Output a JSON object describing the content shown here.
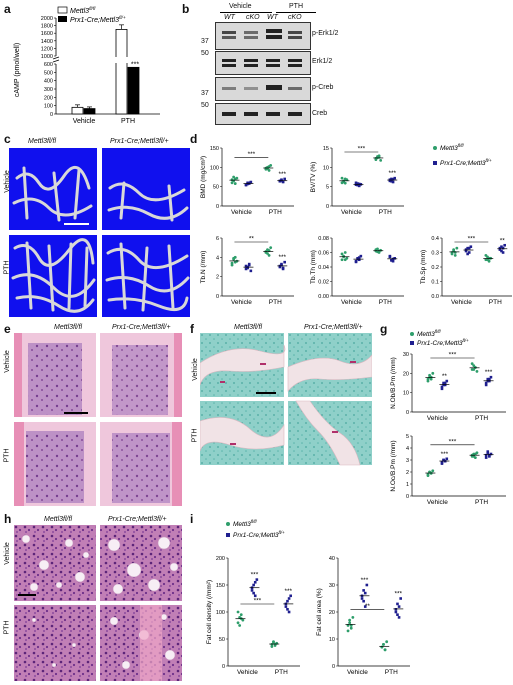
{
  "panels": {
    "a": {
      "letter": "a",
      "legend": [
        "Mettl3fl/fl",
        "Prx1-Cre;Mettl3fl/+"
      ],
      "ylabel": "cAMP (pmol/well)",
      "yticks": [
        "0",
        "100",
        "200",
        "300",
        "400",
        "500",
        "600",
        "1000",
        "1200",
        "1400",
        "1600",
        "1800",
        "2000"
      ],
      "categories": [
        "Vehicle",
        "PTH"
      ],
      "sig": "***"
    },
    "b": {
      "letter": "b",
      "groups": [
        "Vehicle",
        "PTH"
      ],
      "lanes": [
        "WT",
        "cKO",
        "WT",
        "cKO"
      ],
      "bands": [
        "p-Erk1/2",
        "Erk1/2",
        "p-Creb",
        "Creb"
      ],
      "markers": [
        "37",
        "50",
        "37",
        "50"
      ]
    },
    "c": {
      "letter": "c",
      "cols": [
        "Mettl3fl/fl",
        "Prx1-Cre;Mettl3fl/+"
      ],
      "rows": [
        "Vehicle",
        "PTH"
      ]
    },
    "d": {
      "letter": "d",
      "legend": [
        "Mettl3fl/fl",
        "Prx1-Cre;Mettl3fl/+"
      ],
      "xcats": [
        "Vehicle",
        "PTH"
      ]
    },
    "e": {
      "letter": "e",
      "cols": [
        "Mettl3fl/fl",
        "Prx1-Cre;Mettl3fl/+"
      ],
      "rows": [
        "Vehicle",
        "PTH"
      ]
    },
    "f": {
      "letter": "f",
      "cols": [
        "Mettl3fl/fl",
        "Prx1-Cre;Mettl3fl/+"
      ],
      "rows": [
        "Vehicle",
        "PTH"
      ]
    },
    "g": {
      "letter": "g",
      "legend": [
        "Mettl3fl/fl",
        "Prx1-Cre;Mettl3fl/+"
      ]
    },
    "h": {
      "letter": "h",
      "cols": [
        "Mettl3fl/fl",
        "Prx1-Cre;Mettl3fl/+"
      ],
      "rows": [
        "Vehicle",
        "PTH"
      ]
    },
    "i": {
      "letter": "i",
      "legend": [
        "Mettl3fl/fl",
        "Prx1-Cre;Mettl3fl/+"
      ]
    }
  },
  "colors": {
    "wt": "#2e9e6b",
    "ko": "#1f1f8f",
    "ct_bg": "#1010ee",
    "he_pink": "#e9a9c6",
    "he_purple": "#8a4a9a",
    "trap_bg": "#7fc8c2"
  },
  "chart_data": [
    {
      "panel": "a",
      "type": "bar",
      "categories": [
        "Vehicle",
        "PTH"
      ],
      "series": [
        {
          "name": "Mettl3fl/fl",
          "values": [
            80,
            1700
          ],
          "errors": [
            30,
            120
          ]
        },
        {
          "name": "Prx1-Cre;Mettl3fl/+",
          "values": [
            65,
            560
          ],
          "errors": [
            20,
            70
          ]
        }
      ],
      "ylabel": "cAMP (pmol/well)",
      "ylim": [
        0,
        2000
      ],
      "axis_break": [
        600,
        1000
      ]
    },
    {
      "panel": "d",
      "type": "scatter",
      "ylabel": "BMD (mg/cm³)",
      "ylim": [
        0,
        150
      ],
      "yticks": [
        "0",
        "50",
        "100",
        "150"
      ],
      "groups": {
        "wt_vehicle": [
          60,
          65,
          70,
          72,
          68,
          75,
          58
        ],
        "ko_vehicle": [
          55,
          60,
          58,
          62,
          54,
          57,
          60
        ],
        "wt_pth": [
          95,
          100,
          92,
          105,
          98,
          96,
          102
        ],
        "ko_pth": [
          65,
          68,
          62,
          70,
          64,
          66,
          63
        ]
      },
      "sig": {
        "bracket": "***",
        "ko_pth": "***"
      }
    },
    {
      "panel": "d",
      "type": "scatter",
      "ylabel": "BV/TV (%)",
      "ylim": [
        0,
        15
      ],
      "yticks": [
        "0",
        "5",
        "10",
        "15"
      ],
      "groups": {
        "wt_vehicle": [
          6,
          6.5,
          7,
          6.8,
          7.2,
          6.2,
          5.9
        ],
        "ko_vehicle": [
          5.5,
          5.8,
          5.2,
          5.6,
          6.0,
          5.4,
          5.7
        ],
        "wt_pth": [
          12,
          12.5,
          13,
          11.8,
          12.3,
          12.8,
          12.6
        ],
        "ko_pth": [
          6.5,
          7,
          6.2,
          7.2,
          6.8,
          6.4,
          6.9
        ]
      },
      "sig": {
        "bracket": "***",
        "ko_pth": "***"
      }
    },
    {
      "panel": "d",
      "type": "scatter",
      "ylabel": "Tb.N (/mm)",
      "ylim": [
        0,
        6
      ],
      "yticks": [
        "0",
        "2",
        "4",
        "6"
      ],
      "groups": {
        "wt_vehicle": [
          3.4,
          3.8,
          4.0,
          3.6,
          3.2,
          3.9,
          3.5
        ],
        "ko_vehicle": [
          2.8,
          3.0,
          3.2,
          2.6,
          3.1,
          2.9,
          3.3
        ],
        "wt_pth": [
          4.5,
          4.8,
          4.2,
          5.0,
          4.6,
          4.4,
          4.7
        ],
        "ko_pth": [
          3.0,
          3.3,
          2.8,
          3.5,
          3.1,
          3.2,
          2.9
        ]
      },
      "sig": {
        "bracket": "**",
        "ko_pth": "***"
      }
    },
    {
      "panel": "d",
      "type": "scatter",
      "ylabel": "Tb.Th (mm)",
      "ylim": [
        0,
        0.08
      ],
      "yticks": [
        "0.00",
        "0.02",
        "0.04",
        "0.06",
        "0.08"
      ],
      "groups": {
        "wt_vehicle": [
          0.05,
          0.055,
          0.06,
          0.052,
          0.058,
          0.054,
          0.05
        ],
        "ko_vehicle": [
          0.048,
          0.052,
          0.05,
          0.055,
          0.047,
          0.051,
          0.053
        ],
        "wt_pth": [
          0.062,
          0.065,
          0.06,
          0.063,
          0.064,
          0.061,
          0.062
        ],
        "ko_pth": [
          0.055,
          0.05,
          0.048,
          0.052,
          0.054,
          0.049,
          0.051
        ]
      }
    },
    {
      "panel": "d",
      "type": "scatter",
      "ylabel": "Tb.Sp (mm)",
      "ylim": [
        0,
        0.4
      ],
      "yticks": [
        "0.0",
        "0.1",
        "0.2",
        "0.3",
        "0.4"
      ],
      "groups": {
        "wt_vehicle": [
          0.3,
          0.32,
          0.28,
          0.33,
          0.29,
          0.31,
          0.3
        ],
        "ko_vehicle": [
          0.31,
          0.33,
          0.3,
          0.34,
          0.32,
          0.29,
          0.33
        ],
        "wt_pth": [
          0.25,
          0.27,
          0.24,
          0.26,
          0.28,
          0.25,
          0.26
        ],
        "ko_pth": [
          0.32,
          0.34,
          0.3,
          0.35,
          0.33,
          0.31,
          0.33
        ]
      },
      "sig": {
        "bracket": "***",
        "ko_pth": "**"
      }
    },
    {
      "panel": "g",
      "type": "scatter",
      "ylabel": "N.Ob/B.Pm (/mm)",
      "ylim": [
        0,
        30
      ],
      "yticks": [
        "0",
        "10",
        "20",
        "30"
      ],
      "groups": {
        "wt_vehicle": [
          17,
          19,
          18,
          20,
          16,
          18,
          17
        ],
        "ko_vehicle": [
          13,
          15,
          14,
          16,
          12,
          14,
          15
        ],
        "wt_pth": [
          22,
          24,
          23,
          21,
          25,
          22,
          23
        ],
        "ko_pth": [
          15,
          17,
          16,
          18,
          14,
          16,
          17
        ]
      },
      "sig": {
        "bracket": "***",
        "ko_vehicle": "**",
        "ko_pth": "***"
      }
    },
    {
      "panel": "g",
      "type": "scatter",
      "ylabel": "N.Oc/B.Pm (/mm)",
      "ylim": [
        0,
        5
      ],
      "yticks": [
        "0",
        "1",
        "2",
        "3",
        "4",
        "5"
      ],
      "groups": {
        "wt_vehicle": [
          1.8,
          2.0,
          1.9,
          2.1,
          1.7,
          2.0,
          1.9
        ],
        "ko_vehicle": [
          2.8,
          3.0,
          2.9,
          3.1,
          2.7,
          3.0,
          2.9
        ],
        "wt_pth": [
          3.3,
          3.5,
          3.2,
          3.6,
          3.4,
          3.3,
          3.5
        ],
        "ko_pth": [
          3.4,
          3.6,
          3.3,
          3.5,
          3.2,
          3.7,
          3.4
        ]
      },
      "sig": {
        "bracket": "***",
        "ko_vehicle": "***"
      }
    },
    {
      "panel": "i",
      "type": "scatter",
      "ylabel": "Fat cell density (/mm²)",
      "ylim": [
        0,
        200
      ],
      "yticks": [
        "0",
        "50",
        "100",
        "150",
        "200"
      ],
      "groups": {
        "wt_vehicle": [
          80,
          90,
          95,
          85,
          100,
          75,
          88
        ],
        "ko_vehicle": [
          140,
          150,
          130,
          160,
          145,
          135,
          155
        ],
        "wt_pth": [
          40,
          45,
          38,
          42,
          36,
          44,
          40
        ],
        "ko_pth": [
          110,
          120,
          100,
          130,
          115,
          105,
          125
        ]
      },
      "sig": {
        "bracket": "***",
        "ko_vehicle": "***",
        "ko_pth": "***"
      }
    },
    {
      "panel": "i",
      "type": "scatter",
      "ylabel": "Fat cell area (%)",
      "ylim": [
        0,
        40
      ],
      "yticks": [
        "0",
        "10",
        "20",
        "30",
        "40"
      ],
      "groups": {
        "wt_vehicle": [
          15,
          17,
          14,
          18,
          13,
          16,
          15
        ],
        "ko_vehicle": [
          25,
          28,
          22,
          30,
          26,
          24,
          27
        ],
        "wt_pth": [
          7,
          8,
          6,
          9,
          7,
          8,
          6
        ],
        "ko_pth": [
          20,
          23,
          18,
          25,
          21,
          19,
          22
        ]
      },
      "sig": {
        "bracket": "**",
        "ko_vehicle": "***",
        "ko_pth": "***"
      }
    }
  ]
}
